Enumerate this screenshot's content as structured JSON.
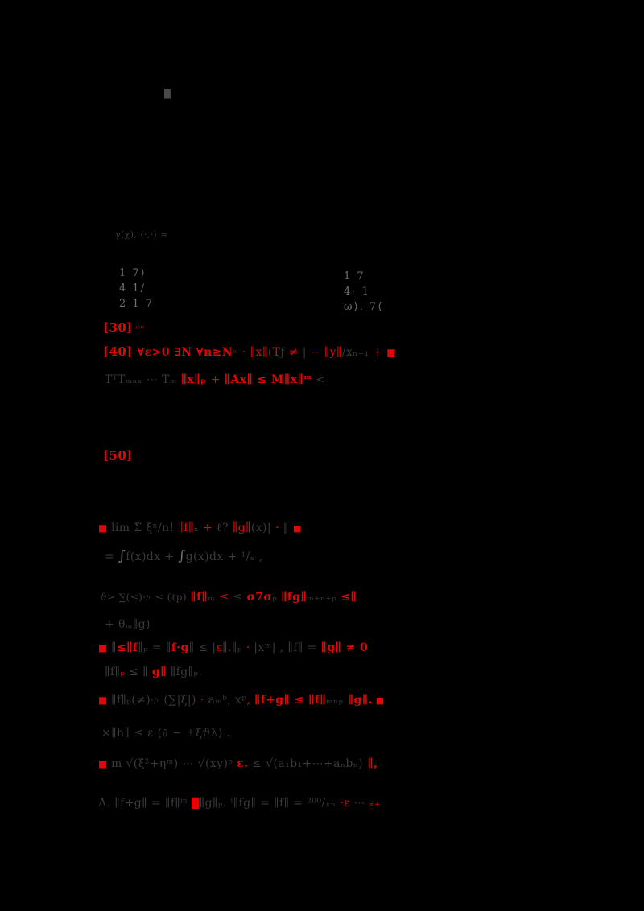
{
  "colors": {
    "background": "#000000",
    "red": "#e60505",
    "dim": "#3a3a3a",
    "dim2": "#4a4a4a",
    "mid": "#707070"
  },
  "matrices": {
    "left": [
      "1  7⟩",
      "4  1/",
      "2  1  7"
    ],
    "right": [
      "1  7",
      "4· 1",
      "ω⟩. 7⟨"
    ]
  },
  "lines": [
    {
      "name": "page-mark",
      "segments": [
        {
          "t": "█",
          "c": "d2",
          "s": 10
        }
      ]
    },
    {
      "name": "heading-remnant",
      "segments": [
        {
          "t": "γ(χ), ⟨·,·⟩ ≈",
          "c": "d",
          "s": 11
        }
      ]
    },
    {
      "name": "citation-30",
      "segments": [
        {
          "t": "[30]",
          "c": "r",
          "s": 15,
          "b": 1
        },
        {
          "t": " ᵐ⁰",
          "c": "r",
          "s": 10
        }
      ]
    },
    {
      "name": "statement-40",
      "segments": [
        {
          "t": "[40] ",
          "c": "r",
          "s": 15,
          "b": 1
        },
        {
          "t": "∀ε>0 ∃N ∀n≥N",
          "c": "r",
          "s": 14,
          "b": 1
        },
        {
          "t": "ᵐ",
          "c": "d",
          "s": 11
        },
        {
          "t": " · ",
          "c": "r"
        },
        {
          "t": "∥x∥",
          "c": "r"
        },
        {
          "t": "(",
          "c": "d"
        },
        {
          "t": "T",
          "c": "r"
        },
        {
          "t": "ƒ ",
          "c": "d"
        },
        {
          "t": "≠",
          "c": "r"
        },
        {
          "t": " | ",
          "c": "d"
        },
        {
          "t": "− ∥y∥",
          "c": "r"
        },
        {
          "t": "/xₙ₊₁ ",
          "c": "d"
        },
        {
          "t": "+ ",
          "c": "r"
        },
        {
          "t": "■",
          "c": "r",
          "s": 12
        }
      ]
    },
    {
      "name": "statement-40-continuation",
      "segments": [
        {
          "t": "TᵀTₘₐₓ ⋯ Tₘ ",
          "c": "d"
        },
        {
          "t": "∥x∥ₚ ",
          "c": "r",
          "b": 1
        },
        {
          "t": "+ ",
          "c": "r"
        },
        {
          "t": "∥Ax∥ ≤ M∥x∥ᵐ",
          "c": "r",
          "b": 1
        },
        {
          "t": " <",
          "c": "d"
        }
      ]
    },
    {
      "name": "citation-50",
      "segments": [
        {
          "t": "[50]",
          "c": "r",
          "s": 15,
          "b": 1
        }
      ]
    },
    {
      "name": "proof-item-1-line-1",
      "segments": [
        {
          "t": "■ ",
          "c": "r",
          "s": 12
        },
        {
          "t": "lim Σ ξⁿ/n! ",
          "c": "d"
        },
        {
          "t": "∥f∥",
          "c": "r"
        },
        {
          "t": "ₓ",
          "c": "d"
        },
        {
          "t": " + ",
          "c": "r"
        },
        {
          "t": "ℓ? ",
          "c": "d"
        },
        {
          "t": "∥g∥",
          "c": "r"
        },
        {
          "t": "(x)| ",
          "c": "d"
        },
        {
          "t": "·",
          "c": "r"
        },
        {
          "t": " ‖ ",
          "c": "d"
        },
        {
          "t": "■",
          "c": "r",
          "s": 11
        }
      ]
    },
    {
      "name": "proof-item-1-line-2",
      "segments": [
        {
          "t": "= ",
          "c": "d"
        },
        {
          "t": "∫",
          "c": "m",
          "s": 17
        },
        {
          "t": "f(x)dx + ",
          "c": "d"
        },
        {
          "t": "∫",
          "c": "m",
          "s": 17
        },
        {
          "t": "g(x)dx + ",
          "c": "d"
        },
        {
          "t": "¹/ₓ ,",
          "c": "d"
        }
      ]
    },
    {
      "name": "proof-item-1-line-3",
      "segments": [
        {
          "t": "ϑ≥ ∑(≤)",
          "c": "d",
          "s": 12
        },
        {
          "t": "¹/ᵖ",
          "c": "d",
          "s": 9
        },
        {
          "t": " ≤ (ℓp) ",
          "c": "d",
          "s": 12
        },
        {
          "t": "∥f∥",
          "c": "r",
          "b": 1
        },
        {
          "t": "ₘ",
          "c": "d"
        },
        {
          "t": " ≤ ",
          "c": "r"
        },
        {
          "t": "≤",
          "c": "d"
        },
        {
          "t": " σ7σ",
          "c": "r",
          "b": 1
        },
        {
          "t": "ₚ ",
          "c": "d"
        },
        {
          "t": "∥fg∥",
          "c": "r",
          "b": 1
        },
        {
          "t": "ₘ₊ₙ₊ₚ ",
          "c": "d"
        },
        {
          "t": "≤∥",
          "c": "r",
          "b": 1
        }
      ]
    },
    {
      "name": "proof-item-1-line-4",
      "segments": [
        {
          "t": "+ θₘ∥g)",
          "c": "d"
        }
      ]
    },
    {
      "name": "proof-item-2-line-1",
      "segments": [
        {
          "t": "■ ",
          "c": "r",
          "s": 12
        },
        {
          "t": "∥",
          "c": "d"
        },
        {
          "t": "≤∥f",
          "c": "r",
          "b": 1
        },
        {
          "t": "∥ₚ = ∥",
          "c": "d"
        },
        {
          "t": "f·g",
          "c": "r",
          "b": 1
        },
        {
          "t": "∥ ≤ |",
          "c": "d"
        },
        {
          "t": "ε",
          "c": "r"
        },
        {
          "t": "∥.∥ₚ ",
          "c": "d"
        },
        {
          "t": "·",
          "c": "r"
        },
        {
          "t": " |xᵐ| , ",
          "c": "d"
        },
        {
          "t": "∥f∥ = ",
          "c": "d"
        },
        {
          "t": "∥g∥ ≠ 0",
          "c": "r",
          "b": 1
        }
      ]
    },
    {
      "name": "proof-item-2-line-2",
      "segments": [
        {
          "t": "∥f∥",
          "c": "d"
        },
        {
          "t": "ₚ",
          "c": "r"
        },
        {
          "t": " ≤ ∥ ",
          "c": "d"
        },
        {
          "t": "g∥",
          "c": "r",
          "b": 1
        },
        {
          "t": " ∥fg∥ₚ.",
          "c": "d"
        }
      ]
    },
    {
      "name": "proof-item-3-line-1",
      "segments": [
        {
          "t": "■ ",
          "c": "r",
          "s": 12
        },
        {
          "t": "∥f∥ₚ(≠)",
          "c": "d"
        },
        {
          "t": "¹/ᵖ",
          "c": "d",
          "s": 9
        },
        {
          "t": " (∑|ξ|) ",
          "c": "d"
        },
        {
          "t": "·",
          "c": "r"
        },
        {
          "t": " aₘ",
          "c": "d"
        },
        {
          "t": "ᵇ, xᵖ",
          "c": "d"
        },
        {
          "t": ", ",
          "c": "r"
        },
        {
          "t": "∥f+g∥ ≤ ∥f∥",
          "c": "r",
          "b": 1
        },
        {
          "t": "ₘₙₚ",
          "c": "d"
        },
        {
          "t": " ∥g∥.",
          "c": "r",
          "b": 1
        },
        {
          "t": " ■",
          "c": "r",
          "s": 11
        }
      ]
    },
    {
      "name": "proof-item-3-line-2",
      "segments": [
        {
          "t": "×∥h∥ ≤ ε (∂ − ±ξϑλ)",
          "c": "d"
        },
        {
          "t": " .",
          "c": "r"
        }
      ]
    },
    {
      "name": "proof-item-4-line-1",
      "segments": [
        {
          "t": "■ ",
          "c": "r",
          "s": 12
        },
        {
          "t": "m ",
          "c": "d"
        },
        {
          "t": "√(ξ²+ηᵐ) ⋯ √(xy)ᵖ ",
          "c": "d"
        },
        {
          "t": "ε.",
          "c": "r",
          "b": 1
        },
        {
          "t": " ≤ ",
          "c": "d"
        },
        {
          "t": "√(a₁b₁+⋯+aₙbₙ)",
          "c": "d"
        },
        {
          "t": " ∥,",
          "c": "r",
          "b": 1
        }
      ]
    },
    {
      "name": "proof-item-4-line-2",
      "segments": [
        {
          "t": "Δ. ∥f+g∥ = ∥f∥ᵐ ",
          "c": "d"
        },
        {
          "t": "█",
          "c": "r",
          "s": 12
        },
        {
          "t": "∥g∥ₚ. ",
          "c": "d"
        },
        {
          "t": "ⁱ∥fg∥ = ∥f∥ ",
          "c": "d"
        },
        {
          "t": "= ",
          "c": "d"
        },
        {
          "t": "²⁰⁰/ₓₙ",
          "c": "d"
        },
        {
          "t": " ·ε",
          "c": "r"
        },
        {
          "t": " ⋯ ",
          "c": "d"
        },
        {
          "t": "ₓ₊",
          "c": "r"
        }
      ]
    }
  ]
}
